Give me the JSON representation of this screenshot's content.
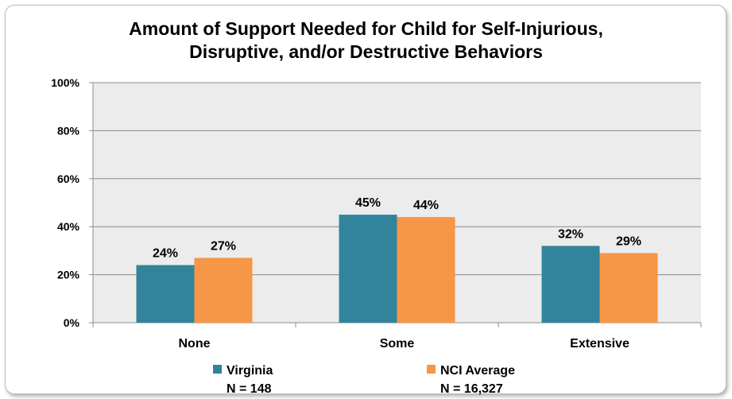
{
  "chart_data": {
    "type": "bar",
    "title_line1": "Amount of Support Needed for Child for Self-Injurious,",
    "title_line2": "Disruptive, and/or Destructive Behaviors",
    "categories": [
      "None",
      "Some",
      "Extensive"
    ],
    "series": [
      {
        "name": "Virginia",
        "n_label": "N = 148",
        "color": "#31849b",
        "values": [
          24,
          45,
          32
        ],
        "value_labels": [
          "24%",
          "45%",
          "32%"
        ]
      },
      {
        "name": "NCI Average",
        "n_label": "N = 16,327",
        "color": "#f79646",
        "values": [
          27,
          44,
          29
        ],
        "value_labels": [
          "27%",
          "44%",
          "29%"
        ]
      }
    ],
    "ylim": [
      0,
      100
    ],
    "yticks": [
      "0%",
      "20%",
      "40%",
      "60%",
      "80%",
      "100%"
    ],
    "grid": true,
    "legend_position": "bottom",
    "plot_background": "#ececec"
  }
}
